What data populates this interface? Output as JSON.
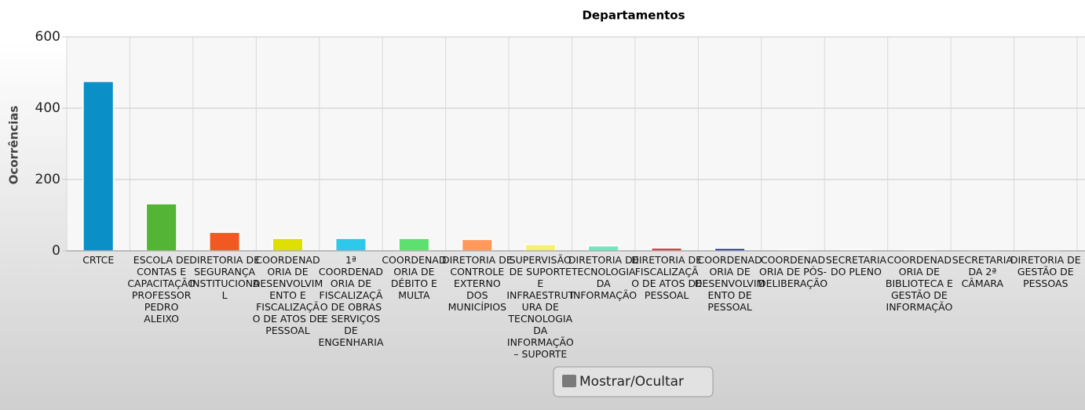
{
  "chart_data": {
    "type": "bar",
    "title": "Departamentos",
    "y_label": "Ocorrências",
    "categories": [
      "CRTCE",
      "ESCOLA DE CONTAS E CAPACITAÇÃO PROFESSOR PEDRO ALEIXO",
      "DIRETORIA DE SEGURANÇA INSTITUCIONAL",
      "COORDENADORIA DE DESENVOLVIMENTO E FISCALIZAÇÃO DE ATOS DE PESSOAL",
      "1ª COORDENADORIA DE FISCALIZAÇÃO DE OBRAS E SERVIÇOS DE ENGENHARIA",
      "COORDENADORIA DE DÉBITO E MULTA",
      "DIRETORIA DE CONTROLE EXTERNO DOS MUNICÍPIOS",
      "SUPERVISÃO DE SUPORTE E INFRAESTRUTURA DE TECNOLOGIA DA INFORMAÇÃO – SUPORTE",
      "DIRETORIA DE TECNOLOGIA DA INFORMAÇÃO",
      "DIRETORIA DE FISCALIZAÇÃO DE ATOS DE PESSOAL",
      "COORDENADORIA DE DESENVOLVIMENTO DE PESSOAL",
      "COORDENADORIA DE PÓS-DELIBERAÇÃO",
      "SECRETARIA DO PLENO",
      "COORDENADORIA DE BIBLIOTECA E GESTÃO DE INFORMAÇÃO",
      "SECRETARIA DA 2ª CÂMARA",
      "DIRETORIA DE GESTÃO DE PESSOAS"
    ],
    "values": [
      475,
      132,
      52,
      35,
      35,
      35,
      32,
      18,
      14,
      8,
      7,
      4,
      4,
      4,
      1,
      1
    ],
    "colors": [
      "#0a8fc6",
      "#54b435",
      "#f05a22",
      "#dde000",
      "#2ec8e8",
      "#5ee070",
      "#ff9a5c",
      "#f4f07a",
      "#6ee6c0",
      "#d43a3a",
      "#1a2a9a",
      "#eeeeee",
      "#eeeeee",
      "#f2f2f2",
      "#f4f4f4",
      "#f4f4f4"
    ],
    "ylim": [
      0,
      600
    ],
    "yticks": [
      0,
      200,
      400,
      600
    ],
    "grid": true,
    "legend": {
      "label": "Mostrar/Ocultar",
      "color": "#7a7a7a"
    }
  }
}
